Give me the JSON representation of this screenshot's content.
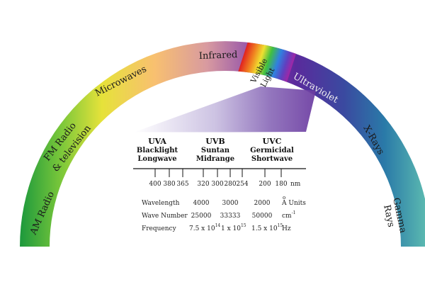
{
  "arc_bands": [
    {
      "label": "AM Radio"
    },
    {
      "label": "FM Radio"
    },
    {
      "label": "& television"
    },
    {
      "label": "Microwaves"
    },
    {
      "label": "Infrared"
    },
    {
      "label": "Visible"
    },
    {
      "label": "Light"
    },
    {
      "label": "Ultraviolet"
    },
    {
      "label": "X-Rays"
    },
    {
      "label": "Gamma"
    },
    {
      "label": "Rays"
    }
  ],
  "uv_bands": [
    {
      "name": "UVA",
      "line1": "Blacklight",
      "line2": "Longwave"
    },
    {
      "name": "UVB",
      "line1": "Suntan",
      "line2": "Midrange"
    },
    {
      "name": "UVC",
      "line1": "Germicidal",
      "line2": "Shortwave"
    }
  ],
  "scale": {
    "ticks": [
      "400",
      "380",
      "365",
      "320",
      "300",
      "280",
      "254",
      "200",
      "180"
    ],
    "unit": "nm"
  },
  "table": {
    "rows": [
      {
        "label": "Wavelength",
        "values": [
          "4000",
          "3000",
          "2000"
        ],
        "unit_base": "A",
        "unit_mark": "o",
        "unit_rest": " Units"
      },
      {
        "label": "Wave Number",
        "values": [
          "25000",
          "33333",
          "50000"
        ],
        "unit_base": "cm",
        "unit_sup": "-1"
      },
      {
        "label": "Frequency",
        "values": [
          {
            "base": "7.5 x 10",
            "exp": "14"
          },
          {
            "base": "1 x 10",
            "exp": "15"
          },
          {
            "base": "1.5 x 10",
            "exp": "15"
          }
        ],
        "unit_base": "Hz"
      }
    ]
  },
  "colors": {
    "am": "#27a040",
    "fm": "#c8dd2a",
    "micro": "#f6b070",
    "infrared": "#9a4aa2",
    "ultraviolet": "#5a2aa0",
    "xrays": "#2a6aa8",
    "gamma": "#4aa0a8"
  }
}
